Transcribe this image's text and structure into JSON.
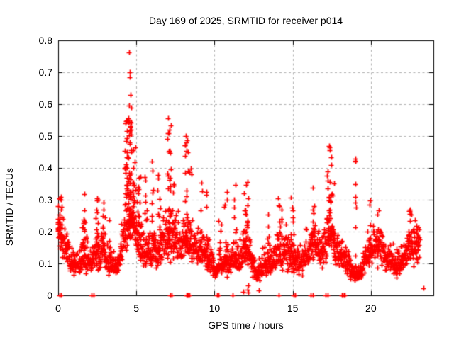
{
  "chart_data": {
    "type": "scatter",
    "title": "Day 169 of 2025, SRMTID for receiver p014",
    "xlabel": "GPS time / hours",
    "ylabel": "SRMTID / TECUs",
    "xlim": [
      0,
      24
    ],
    "ylim": [
      0,
      0.8
    ],
    "xticks": [
      {
        "v": 0,
        "label": "0"
      },
      {
        "v": 5,
        "label": "5"
      },
      {
        "v": 10,
        "label": "10"
      },
      {
        "v": 15,
        "label": "15"
      },
      {
        "v": 20,
        "label": "20"
      }
    ],
    "yticks": [
      {
        "v": 0.0,
        "label": "0"
      },
      {
        "v": 0.1,
        "label": "0.1"
      },
      {
        "v": 0.2,
        "label": "0.2"
      },
      {
        "v": 0.3,
        "label": "0.3"
      },
      {
        "v": 0.4,
        "label": "0.4"
      },
      {
        "v": 0.5,
        "label": "0.5"
      },
      {
        "v": 0.6,
        "label": "0.6"
      },
      {
        "v": 0.7,
        "label": "0.7"
      },
      {
        "v": 0.8,
        "label": "0.8"
      }
    ],
    "grid": {
      "show": true,
      "color": "#b0b0b0",
      "dash": [
        3,
        3.5
      ],
      "x_at": [
        5,
        10,
        15,
        20
      ],
      "y_at": [
        0.1,
        0.2,
        0.3,
        0.4,
        0.5,
        0.6,
        0.7
      ]
    },
    "axes": {
      "border_color": "#000000",
      "tick_length": 6,
      "ticks_mirrored": true
    },
    "marker": {
      "shape": "plus",
      "color": "#ff0000",
      "size": 7,
      "line_width": 1.7
    },
    "legend": {
      "show": false
    },
    "series": [
      {
        "name": "SRMTID",
        "sampling": {
          "seed": 1690214,
          "t_start": 0.02,
          "t_end": 23.12,
          "cadence_hours": 0.0125
        },
        "baseline_mean": [
          [
            0.0,
            0.2
          ],
          [
            0.4,
            0.14
          ],
          [
            0.8,
            0.125
          ],
          [
            1.3,
            0.12
          ],
          [
            1.6,
            0.16
          ],
          [
            2.0,
            0.12
          ],
          [
            2.5,
            0.15
          ],
          [
            3.0,
            0.14
          ],
          [
            3.5,
            0.1
          ],
          [
            3.9,
            0.12
          ],
          [
            4.4,
            0.2
          ],
          [
            4.7,
            0.22
          ],
          [
            5.0,
            0.19
          ],
          [
            5.5,
            0.16
          ],
          [
            6.0,
            0.17
          ],
          [
            6.3,
            0.12
          ],
          [
            6.6,
            0.15
          ],
          [
            7.0,
            0.17
          ],
          [
            7.5,
            0.15
          ],
          [
            8.0,
            0.16
          ],
          [
            8.6,
            0.13
          ],
          [
            9.0,
            0.13
          ],
          [
            9.5,
            0.12
          ],
          [
            9.9,
            0.09
          ],
          [
            10.15,
            0.07
          ],
          [
            10.45,
            0.12
          ],
          [
            10.8,
            0.12
          ],
          [
            11.2,
            0.1
          ],
          [
            11.6,
            0.11
          ],
          [
            12.0,
            0.15
          ],
          [
            12.4,
            0.1
          ],
          [
            12.7,
            0.065
          ],
          [
            13.0,
            0.08
          ],
          [
            13.3,
            0.1
          ],
          [
            13.6,
            0.12
          ],
          [
            14.0,
            0.14
          ],
          [
            14.4,
            0.15
          ],
          [
            14.8,
            0.15
          ],
          [
            15.2,
            0.13
          ],
          [
            15.6,
            0.11
          ],
          [
            16.0,
            0.12
          ],
          [
            16.4,
            0.14
          ],
          [
            16.8,
            0.12
          ],
          [
            17.2,
            0.17
          ],
          [
            17.5,
            0.18
          ],
          [
            17.8,
            0.13
          ],
          [
            18.2,
            0.11
          ],
          [
            18.6,
            0.1
          ],
          [
            19.0,
            0.075
          ],
          [
            19.4,
            0.09
          ],
          [
            19.8,
            0.11
          ],
          [
            20.3,
            0.15
          ],
          [
            20.7,
            0.13
          ],
          [
            21.0,
            0.1
          ],
          [
            21.5,
            0.085
          ],
          [
            22.0,
            0.1
          ],
          [
            22.5,
            0.14
          ],
          [
            22.8,
            0.13
          ],
          [
            23.1,
            0.15
          ]
        ],
        "noise": {
          "sigma": 0.55,
          "walk": 0.22,
          "min_value": 0.02
        },
        "spikes": [
          [
            0.12,
            0.12,
            0.31,
            26
          ],
          [
            1.62,
            0.1,
            0.32,
            16
          ],
          [
            2.5,
            0.1,
            0.31,
            14
          ],
          [
            2.92,
            0.08,
            0.3,
            10
          ],
          [
            3.3,
            0.06,
            0.24,
            6
          ],
          [
            4.45,
            0.18,
            0.55,
            55
          ],
          [
            4.62,
            0.1,
            0.56,
            30
          ],
          [
            4.85,
            0.12,
            0.47,
            25
          ],
          [
            5.2,
            0.12,
            0.38,
            16
          ],
          [
            5.6,
            0.08,
            0.38,
            10
          ],
          [
            6.05,
            0.08,
            0.42,
            12
          ],
          [
            6.45,
            0.1,
            0.38,
            12
          ],
          [
            7.1,
            0.15,
            0.55,
            30
          ],
          [
            7.4,
            0.08,
            0.35,
            8
          ],
          [
            8.2,
            0.12,
            0.5,
            22
          ],
          [
            8.45,
            0.08,
            0.4,
            8
          ],
          [
            9.15,
            0.06,
            0.36,
            6
          ],
          [
            9.55,
            0.08,
            0.33,
            8
          ],
          [
            10.35,
            0.08,
            0.24,
            6
          ],
          [
            10.7,
            0.1,
            0.33,
            8
          ],
          [
            11.3,
            0.08,
            0.35,
            8
          ],
          [
            12.0,
            0.15,
            0.36,
            20
          ],
          [
            13.5,
            0.1,
            0.26,
            8
          ],
          [
            14.2,
            0.15,
            0.31,
            14
          ],
          [
            14.95,
            0.12,
            0.31,
            12
          ],
          [
            16.3,
            0.12,
            0.34,
            10
          ],
          [
            17.35,
            0.15,
            0.47,
            26
          ],
          [
            17.6,
            0.08,
            0.36,
            8
          ],
          [
            19.0,
            0.05,
            0.43,
            7
          ],
          [
            19.95,
            0.08,
            0.3,
            8
          ],
          [
            20.4,
            0.1,
            0.26,
            8
          ],
          [
            22.5,
            0.1,
            0.27,
            10
          ],
          [
            22.9,
            0.1,
            0.24,
            8
          ]
        ],
        "extra_points": [
          [
            4.55,
            0.762
          ],
          [
            4.59,
            0.7
          ],
          [
            4.6,
            0.685
          ],
          [
            4.63,
            0.63
          ],
          [
            4.52,
            0.595
          ],
          [
            4.66,
            0.59
          ],
          [
            4.48,
            0.555
          ],
          [
            7.05,
            0.555
          ],
          [
            7.12,
            0.52
          ],
          [
            7.08,
            0.51
          ],
          [
            8.18,
            0.5
          ],
          [
            8.22,
            0.48
          ],
          [
            17.32,
            0.47
          ],
          [
            17.36,
            0.455
          ],
          [
            19.0,
            0.43
          ],
          [
            19.02,
            0.42
          ],
          [
            19.01,
            0.35
          ],
          [
            19.03,
            0.31
          ],
          [
            22.48,
            0.265
          ],
          [
            22.52,
            0.27
          ]
        ],
        "near_zero_points": [
          [
            11.82,
            0.012
          ],
          [
            12.1,
            0.018
          ],
          [
            12.14,
            0.032
          ],
          [
            12.16,
            0.008
          ],
          [
            12.85,
            0.015
          ],
          [
            23.38,
            0.022
          ]
        ],
        "zero_points": [
          0.1,
          0.18,
          2.15,
          2.27,
          7.15,
          7.28,
          8.2,
          8.26,
          8.32,
          8.38,
          10.15,
          10.27,
          11.15,
          14.1,
          15.05,
          15.17,
          16.15,
          16.27,
          17.1,
          17.22,
          18.15,
          18.21,
          18.27,
          18.33
        ]
      }
    ]
  },
  "figure": {
    "background": "#ffffff",
    "text_color": "#000000"
  }
}
